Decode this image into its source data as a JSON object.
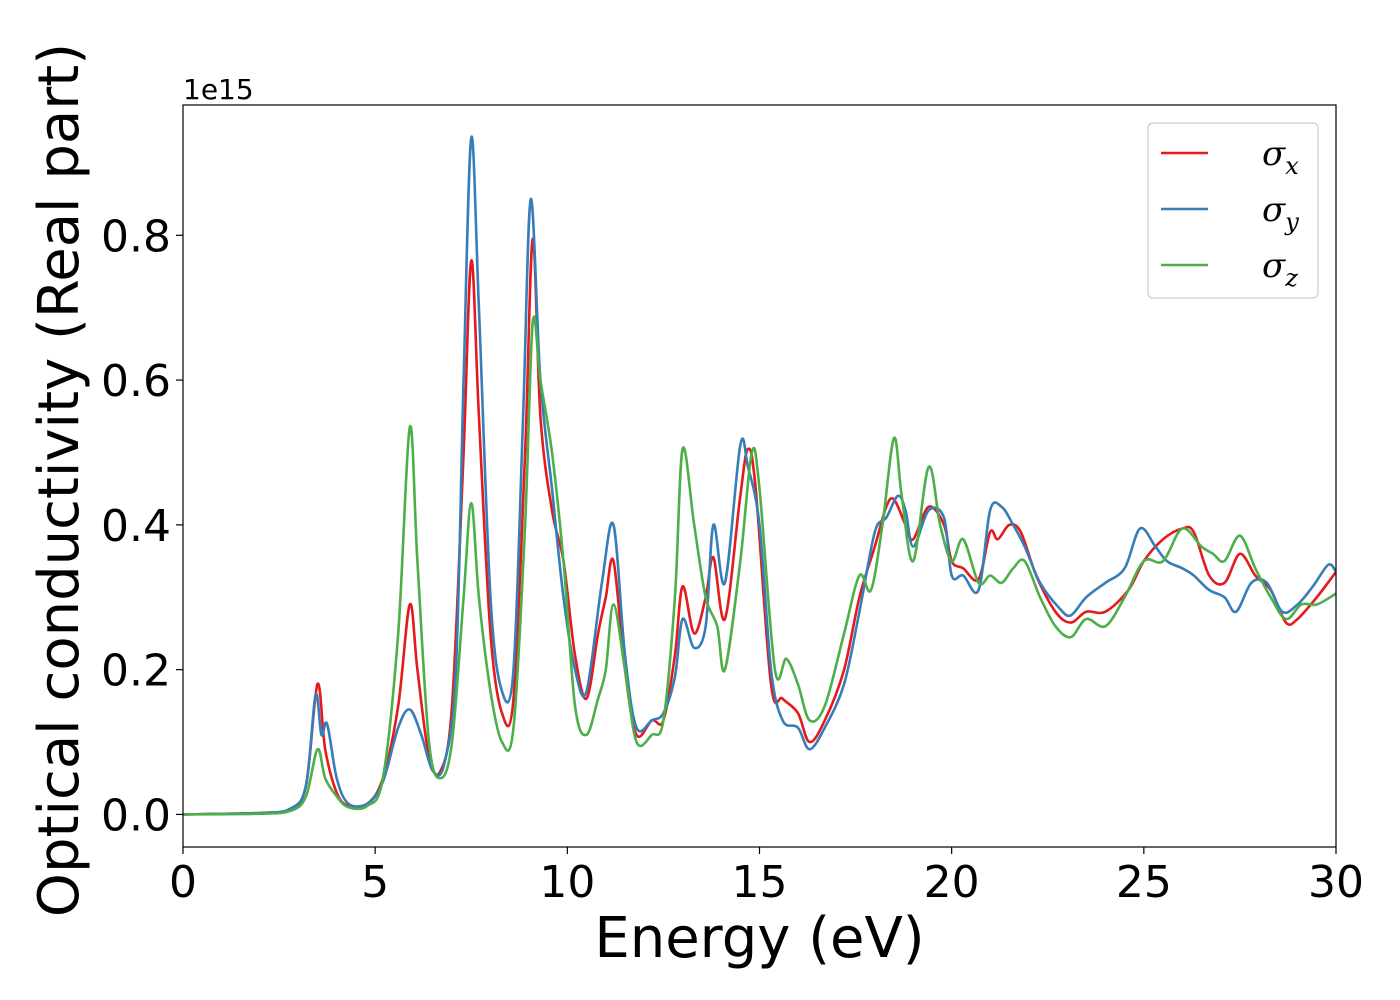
{
  "chart_data": {
    "type": "line",
    "xlabel": "Energy (eV)",
    "ylabel": "Optical conductivity (Real part)",
    "y_offset_text": "1e15",
    "xlim": [
      0,
      30
    ],
    "ylim": [
      -0.045,
      0.98
    ],
    "x_ticks": [
      0,
      5,
      10,
      15,
      20,
      25,
      30
    ],
    "x_tick_labels": [
      "0",
      "5",
      "10",
      "15",
      "20",
      "25",
      "30"
    ],
    "y_ticks": [
      0.0,
      0.2,
      0.4,
      0.6,
      0.8
    ],
    "y_tick_labels": [
      "0.0",
      "0.2",
      "0.4",
      "0.6",
      "0.8"
    ],
    "grid": false,
    "legend_position": "top-right",
    "series": [
      {
        "name": "σx",
        "symbol": "σ",
        "subscript": "x",
        "color": "#e41a1c",
        "points": [
          [
            0,
            0
          ],
          [
            2,
            0.002
          ],
          [
            2.8,
            0.008
          ],
          [
            3.2,
            0.04
          ],
          [
            3.5,
            0.18
          ],
          [
            3.7,
            0.09
          ],
          [
            4,
            0.03
          ],
          [
            4.3,
            0.012
          ],
          [
            4.8,
            0.015
          ],
          [
            5.2,
            0.05
          ],
          [
            5.6,
            0.15
          ],
          [
            5.9,
            0.29
          ],
          [
            6.1,
            0.2
          ],
          [
            6.4,
            0.08
          ],
          [
            6.7,
            0.06
          ],
          [
            7.0,
            0.15
          ],
          [
            7.3,
            0.5
          ],
          [
            7.5,
            0.765
          ],
          [
            7.7,
            0.55
          ],
          [
            8.0,
            0.25
          ],
          [
            8.3,
            0.14
          ],
          [
            8.6,
            0.16
          ],
          [
            8.9,
            0.5
          ],
          [
            9.1,
            0.795
          ],
          [
            9.3,
            0.55
          ],
          [
            9.6,
            0.42
          ],
          [
            9.9,
            0.35
          ],
          [
            10.2,
            0.22
          ],
          [
            10.5,
            0.16
          ],
          [
            10.8,
            0.25
          ],
          [
            11.0,
            0.3
          ],
          [
            11.2,
            0.35
          ],
          [
            11.5,
            0.2
          ],
          [
            11.8,
            0.11
          ],
          [
            12.2,
            0.13
          ],
          [
            12.5,
            0.13
          ],
          [
            12.8,
            0.22
          ],
          [
            13.0,
            0.315
          ],
          [
            13.3,
            0.25
          ],
          [
            13.6,
            0.3
          ],
          [
            13.8,
            0.355
          ],
          [
            14.1,
            0.27
          ],
          [
            14.5,
            0.44
          ],
          [
            14.7,
            0.505
          ],
          [
            14.9,
            0.45
          ],
          [
            15.3,
            0.18
          ],
          [
            15.6,
            0.16
          ],
          [
            16.0,
            0.14
          ],
          [
            16.3,
            0.1
          ],
          [
            16.7,
            0.13
          ],
          [
            17.2,
            0.2
          ],
          [
            17.6,
            0.3
          ],
          [
            18.0,
            0.37
          ],
          [
            18.3,
            0.425
          ],
          [
            18.5,
            0.435
          ],
          [
            18.8,
            0.4
          ],
          [
            19.0,
            0.38
          ],
          [
            19.4,
            0.425
          ],
          [
            19.8,
            0.4
          ],
          [
            20.0,
            0.35
          ],
          [
            20.3,
            0.34
          ],
          [
            20.7,
            0.325
          ],
          [
            21.0,
            0.39
          ],
          [
            21.2,
            0.38
          ],
          [
            21.5,
            0.4
          ],
          [
            21.8,
            0.39
          ],
          [
            22.2,
            0.33
          ],
          [
            22.7,
            0.28
          ],
          [
            23.1,
            0.265
          ],
          [
            23.5,
            0.28
          ],
          [
            24.0,
            0.28
          ],
          [
            24.6,
            0.31
          ],
          [
            25.0,
            0.35
          ],
          [
            25.5,
            0.38
          ],
          [
            26.0,
            0.395
          ],
          [
            26.3,
            0.39
          ],
          [
            26.7,
            0.33
          ],
          [
            27.1,
            0.32
          ],
          [
            27.5,
            0.36
          ],
          [
            27.9,
            0.33
          ],
          [
            28.3,
            0.31
          ],
          [
            28.7,
            0.265
          ],
          [
            29.0,
            0.27
          ],
          [
            29.5,
            0.3
          ],
          [
            30.0,
            0.335
          ]
        ]
      },
      {
        "name": "σy",
        "symbol": "σ",
        "subscript": "y",
        "color": "#377eb8",
        "points": [
          [
            0,
            0
          ],
          [
            2,
            0.002
          ],
          [
            2.8,
            0.008
          ],
          [
            3.2,
            0.04
          ],
          [
            3.45,
            0.165
          ],
          [
            3.6,
            0.11
          ],
          [
            3.75,
            0.125
          ],
          [
            4.0,
            0.05
          ],
          [
            4.3,
            0.015
          ],
          [
            4.8,
            0.015
          ],
          [
            5.2,
            0.045
          ],
          [
            5.6,
            0.12
          ],
          [
            5.9,
            0.145
          ],
          [
            6.2,
            0.11
          ],
          [
            6.5,
            0.06
          ],
          [
            6.8,
            0.07
          ],
          [
            7.1,
            0.2
          ],
          [
            7.3,
            0.6
          ],
          [
            7.5,
            0.935
          ],
          [
            7.7,
            0.7
          ],
          [
            8.0,
            0.3
          ],
          [
            8.3,
            0.17
          ],
          [
            8.6,
            0.2
          ],
          [
            8.85,
            0.55
          ],
          [
            9.05,
            0.85
          ],
          [
            9.3,
            0.6
          ],
          [
            9.6,
            0.45
          ],
          [
            9.9,
            0.3
          ],
          [
            10.2,
            0.2
          ],
          [
            10.5,
            0.17
          ],
          [
            10.9,
            0.32
          ],
          [
            11.2,
            0.4
          ],
          [
            11.5,
            0.22
          ],
          [
            11.8,
            0.12
          ],
          [
            12.2,
            0.13
          ],
          [
            12.5,
            0.14
          ],
          [
            12.8,
            0.19
          ],
          [
            13.0,
            0.27
          ],
          [
            13.3,
            0.23
          ],
          [
            13.6,
            0.26
          ],
          [
            13.8,
            0.4
          ],
          [
            14.1,
            0.32
          ],
          [
            14.5,
            0.51
          ],
          [
            14.7,
            0.48
          ],
          [
            15.0,
            0.4
          ],
          [
            15.3,
            0.2
          ],
          [
            15.6,
            0.13
          ],
          [
            16.0,
            0.12
          ],
          [
            16.3,
            0.09
          ],
          [
            16.7,
            0.12
          ],
          [
            17.2,
            0.18
          ],
          [
            17.6,
            0.28
          ],
          [
            18.0,
            0.39
          ],
          [
            18.3,
            0.41
          ],
          [
            18.6,
            0.44
          ],
          [
            18.8,
            0.42
          ],
          [
            19.0,
            0.37
          ],
          [
            19.4,
            0.42
          ],
          [
            19.8,
            0.41
          ],
          [
            20.0,
            0.33
          ],
          [
            20.3,
            0.33
          ],
          [
            20.7,
            0.31
          ],
          [
            21.0,
            0.42
          ],
          [
            21.3,
            0.425
          ],
          [
            21.6,
            0.4
          ],
          [
            21.9,
            0.37
          ],
          [
            22.3,
            0.32
          ],
          [
            22.8,
            0.285
          ],
          [
            23.1,
            0.275
          ],
          [
            23.5,
            0.3
          ],
          [
            24.0,
            0.32
          ],
          [
            24.5,
            0.34
          ],
          [
            24.9,
            0.395
          ],
          [
            25.3,
            0.37
          ],
          [
            25.6,
            0.35
          ],
          [
            26.0,
            0.34
          ],
          [
            26.3,
            0.33
          ],
          [
            26.7,
            0.31
          ],
          [
            27.1,
            0.3
          ],
          [
            27.4,
            0.28
          ],
          [
            27.8,
            0.32
          ],
          [
            28.2,
            0.32
          ],
          [
            28.6,
            0.28
          ],
          [
            29.0,
            0.29
          ],
          [
            29.4,
            0.315
          ],
          [
            29.8,
            0.345
          ],
          [
            30.0,
            0.335
          ]
        ]
      },
      {
        "name": "σz",
        "symbol": "σ",
        "subscript": "z",
        "color": "#4daf4a",
        "points": [
          [
            0,
            0
          ],
          [
            2,
            0.001
          ],
          [
            2.8,
            0.005
          ],
          [
            3.2,
            0.025
          ],
          [
            3.5,
            0.09
          ],
          [
            3.7,
            0.05
          ],
          [
            4.0,
            0.025
          ],
          [
            4.3,
            0.01
          ],
          [
            4.8,
            0.012
          ],
          [
            5.2,
            0.05
          ],
          [
            5.6,
            0.25
          ],
          [
            5.9,
            0.535
          ],
          [
            6.1,
            0.35
          ],
          [
            6.4,
            0.1
          ],
          [
            6.7,
            0.05
          ],
          [
            7.0,
            0.1
          ],
          [
            7.3,
            0.3
          ],
          [
            7.5,
            0.43
          ],
          [
            7.7,
            0.3
          ],
          [
            8.0,
            0.17
          ],
          [
            8.3,
            0.1
          ],
          [
            8.6,
            0.12
          ],
          [
            8.9,
            0.4
          ],
          [
            9.1,
            0.68
          ],
          [
            9.3,
            0.6
          ],
          [
            9.6,
            0.5
          ],
          [
            9.9,
            0.35
          ],
          [
            10.2,
            0.15
          ],
          [
            10.5,
            0.11
          ],
          [
            10.8,
            0.16
          ],
          [
            11.0,
            0.2
          ],
          [
            11.2,
            0.29
          ],
          [
            11.5,
            0.2
          ],
          [
            11.8,
            0.1
          ],
          [
            12.2,
            0.11
          ],
          [
            12.5,
            0.13
          ],
          [
            12.8,
            0.3
          ],
          [
            13.0,
            0.505
          ],
          [
            13.3,
            0.4
          ],
          [
            13.6,
            0.3
          ],
          [
            13.9,
            0.26
          ],
          [
            14.1,
            0.2
          ],
          [
            14.5,
            0.35
          ],
          [
            14.8,
            0.5
          ],
          [
            15.0,
            0.45
          ],
          [
            15.4,
            0.2
          ],
          [
            15.7,
            0.215
          ],
          [
            16.0,
            0.18
          ],
          [
            16.3,
            0.13
          ],
          [
            16.7,
            0.15
          ],
          [
            17.2,
            0.25
          ],
          [
            17.6,
            0.33
          ],
          [
            17.9,
            0.31
          ],
          [
            18.2,
            0.4
          ],
          [
            18.5,
            0.52
          ],
          [
            18.7,
            0.44
          ],
          [
            19.0,
            0.35
          ],
          [
            19.4,
            0.48
          ],
          [
            19.7,
            0.4
          ],
          [
            20.0,
            0.35
          ],
          [
            20.3,
            0.38
          ],
          [
            20.7,
            0.32
          ],
          [
            21.0,
            0.33
          ],
          [
            21.3,
            0.32
          ],
          [
            21.6,
            0.34
          ],
          [
            21.9,
            0.35
          ],
          [
            22.3,
            0.3
          ],
          [
            22.7,
            0.26
          ],
          [
            23.1,
            0.245
          ],
          [
            23.5,
            0.27
          ],
          [
            24.0,
            0.26
          ],
          [
            24.5,
            0.3
          ],
          [
            25.0,
            0.35
          ],
          [
            25.5,
            0.35
          ],
          [
            26.0,
            0.395
          ],
          [
            26.5,
            0.37
          ],
          [
            26.8,
            0.36
          ],
          [
            27.1,
            0.35
          ],
          [
            27.5,
            0.385
          ],
          [
            27.9,
            0.34
          ],
          [
            28.3,
            0.3
          ],
          [
            28.7,
            0.27
          ],
          [
            29.1,
            0.29
          ],
          [
            29.5,
            0.29
          ],
          [
            30.0,
            0.305
          ]
        ]
      }
    ]
  }
}
